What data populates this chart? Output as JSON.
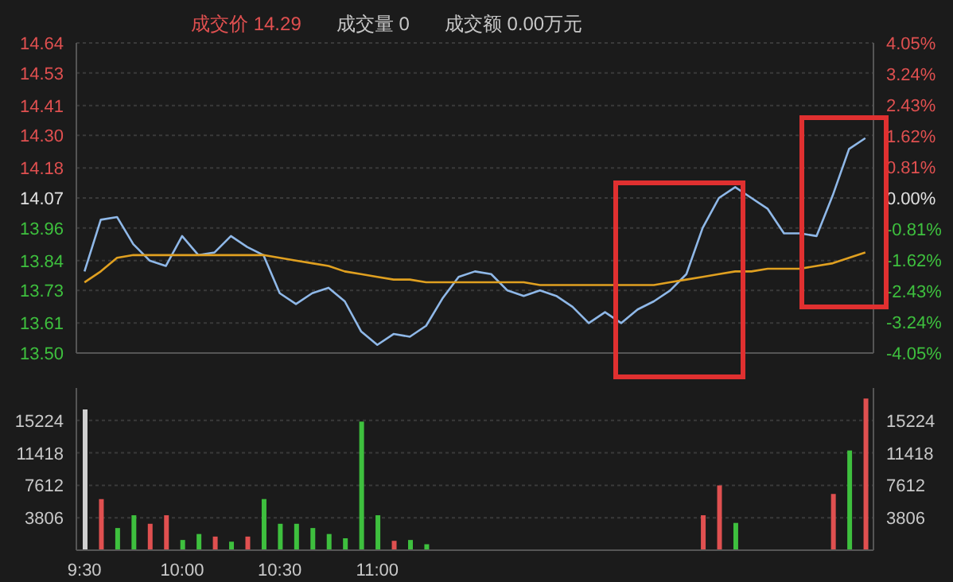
{
  "chart_data": [
    {
      "type": "line",
      "annotations": [
        "成交价 14.29",
        "成交量 0",
        "成交额 0.00万元"
      ],
      "categories": [
        null,
        null,
        null,
        null,
        null,
        null,
        null,
        null,
        null,
        null,
        null,
        null,
        null,
        null,
        null,
        null,
        null,
        null,
        null,
        null,
        null,
        null,
        null,
        null,
        null,
        null,
        null,
        null,
        null,
        null,
        null,
        null,
        null,
        null,
        null,
        null,
        null,
        null,
        null,
        null,
        null,
        null,
        null,
        null,
        null,
        null,
        null,
        null,
        null
      ],
      "series": [
        {
          "color": "#8fb8e8",
          "values": [
            13.8,
            13.99,
            14.0,
            13.9,
            13.84,
            13.82,
            13.93,
            13.86,
            13.87,
            13.93,
            13.89,
            13.86,
            13.72,
            13.68,
            13.72,
            13.74,
            13.69,
            13.58,
            13.53,
            13.57,
            13.56,
            13.6,
            13.7,
            13.78,
            13.8,
            13.79,
            13.73,
            13.71,
            13.73,
            13.71,
            13.67,
            13.61,
            13.65,
            13.61,
            13.66,
            13.69,
            13.73,
            13.79,
            13.96,
            14.07,
            14.11,
            14.07,
            14.03,
            13.94,
            13.94,
            13.93,
            14.08,
            14.25,
            14.29
          ]
        },
        {
          "color": "#e0a020",
          "values": [
            13.76,
            13.8,
            13.85,
            13.86,
            13.86,
            13.86,
            13.86,
            13.86,
            13.86,
            13.86,
            13.86,
            13.86,
            13.85,
            13.84,
            13.83,
            13.82,
            13.8,
            13.79,
            13.78,
            13.77,
            13.77,
            13.76,
            13.76,
            13.76,
            13.76,
            13.76,
            13.76,
            13.76,
            13.75,
            13.75,
            13.75,
            13.75,
            13.75,
            13.75,
            13.75,
            13.75,
            13.76,
            13.77,
            13.78,
            13.79,
            13.8,
            13.8,
            13.81,
            13.81,
            13.81,
            13.82,
            13.83,
            13.85,
            13.87
          ]
        }
      ],
      "ylim": [
        13.5,
        14.64
      ],
      "yticks": [
        {
          "value": 13.5,
          "label": "13.50"
        },
        13.61,
        13.73,
        13.84,
        13.96,
        14.07,
        14.18,
        {
          "value": 14.3,
          "label": "14.30"
        },
        14.41,
        14.53,
        14.64
      ],
      "y2lim": [
        -4.05,
        4.05
      ],
      "y2ticks": [
        {
          "value": -4.05,
          "label": "-4.05%"
        },
        {
          "value": -3.24,
          "label": "-3.24%"
        },
        {
          "value": -2.43,
          "label": "-2.43%"
        },
        {
          "value": -1.62,
          "label": "-1.62%"
        },
        {
          "value": -0.81,
          "label": "-0.81%"
        },
        {
          "value": 0,
          "label": "0.00%"
        },
        {
          "value": 0.81,
          "label": "0.81%"
        },
        {
          "value": 1.62,
          "label": "1.62%"
        },
        {
          "value": 2.43,
          "label": "2.43%"
        },
        {
          "value": 3.24,
          "label": "3.24%"
        },
        {
          "value": 4.05,
          "label": "4.05%"
        }
      ],
      "grid": "y"
    },
    {
      "type": "bar",
      "categories": [
        "9:30",
        null,
        null,
        null,
        null,
        null,
        "10:00",
        null,
        null,
        null,
        null,
        null,
        "10:30",
        null,
        null,
        null,
        null,
        null,
        "11:00",
        null,
        null,
        null,
        null,
        null,
        null,
        null,
        null,
        null,
        null,
        null,
        null,
        null,
        null,
        null,
        null,
        null,
        null,
        null,
        null,
        null,
        null,
        null,
        null,
        null,
        null,
        null,
        null,
        null,
        null
      ],
      "values": [
        16500,
        6000,
        2600,
        4100,
        3100,
        4100,
        1200,
        1900,
        1600,
        1000,
        1600,
        6000,
        3100,
        3100,
        2600,
        1900,
        1400,
        15100,
        4100,
        1100,
        1200,
        700,
        null,
        null,
        null,
        null,
        null,
        null,
        null,
        null,
        null,
        null,
        null,
        null,
        null,
        null,
        null,
        null,
        4100,
        7600,
        3200,
        null,
        null,
        null,
        null,
        null,
        6600,
        11700,
        17800
      ],
      "colors": [
        "#d0d0d0",
        "#e05050",
        "#3ec03e",
        "#3ec03e",
        "#e05050",
        "#e05050",
        "#3ec03e",
        "#3ec03e",
        "#e05050",
        "#3ec03e",
        "#e05050",
        "#3ec03e",
        "#3ec03e",
        "#3ec03e",
        "#3ec03e",
        "#3ec03e",
        "#3ec03e",
        "#3ec03e",
        "#3ec03e",
        "#e05050",
        "#3ec03e",
        "#3ec03e",
        "#3ec03e",
        "#3ec03e",
        "#3ec03e",
        "#3ec03e",
        "#3ec03e",
        "#3ec03e",
        "#3ec03e",
        "#3ec03e",
        "#3ec03e",
        "#3ec03e",
        "#3ec03e",
        "#3ec03e",
        "#3ec03e",
        "#3ec03e",
        "#3ec03e",
        "#3ec03e",
        "#e05050",
        "#e05050",
        "#3ec03e",
        "#3ec03e",
        "#3ec03e",
        "#3ec03e",
        "#3ec03e",
        "#3ec03e",
        "#e05050",
        "#3ec03e",
        "#e05050"
      ],
      "ylim": [
        0,
        19030
      ],
      "yticks": [
        3806,
        7612,
        11418,
        15224
      ],
      "y2lim": [
        0,
        19030
      ],
      "y2ticks": [
        3806,
        7612,
        11418,
        15224
      ],
      "grid": "y"
    }
  ]
}
